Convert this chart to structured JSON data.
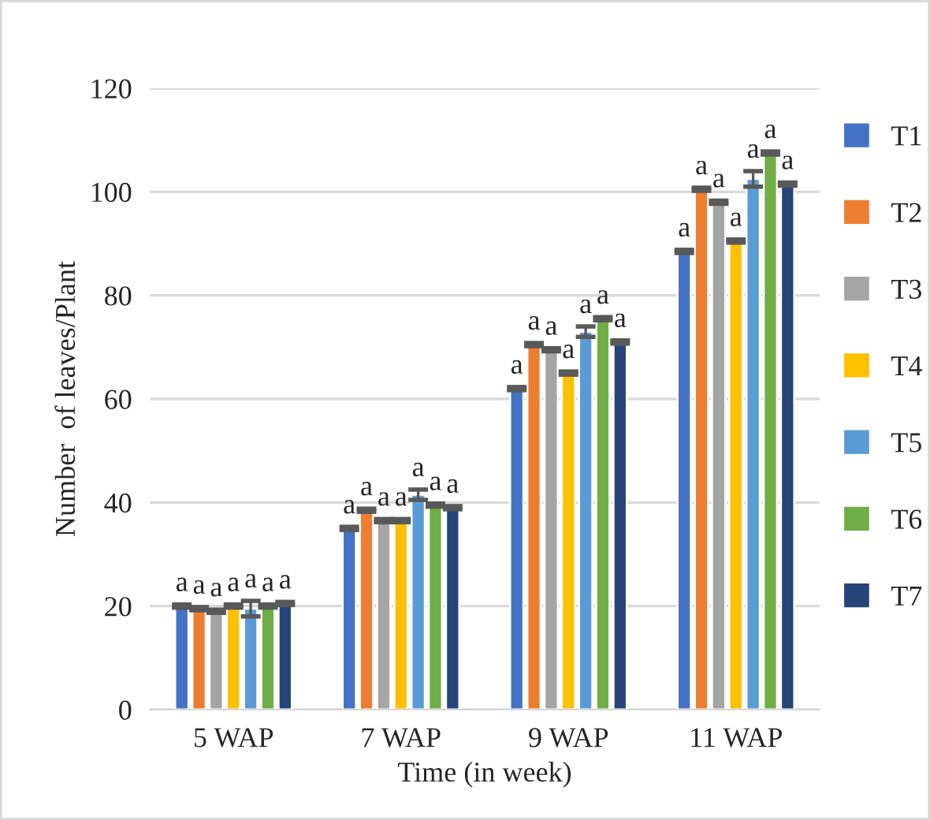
{
  "chart_data": {
    "type": "bar",
    "xlabel": "Time (in week)",
    "ylabel": "Number  of leaves/Plant",
    "categories": [
      "5 WAP",
      "7 WAP",
      "9 WAP",
      "11 WAP"
    ],
    "series": [
      {
        "name": "T1",
        "color": "#4472c4",
        "values": [
          20,
          35,
          62,
          88.5
        ],
        "errors": [
          0.3,
          0.3,
          0.3,
          0.3
        ],
        "value_labels": [
          "a",
          "a",
          "a",
          "a"
        ]
      },
      {
        "name": "T2",
        "color": "#ed7d31",
        "values": [
          19.5,
          38.5,
          70.5,
          100.5
        ],
        "errors": [
          0.3,
          0.3,
          0.3,
          0.3
        ],
        "value_labels": [
          "a",
          "a",
          "a",
          "a"
        ]
      },
      {
        "name": "T3",
        "color": "#a5a5a5",
        "values": [
          19,
          36.5,
          69.5,
          98
        ],
        "errors": [
          0.3,
          0.3,
          0.3,
          0.3
        ],
        "value_labels": [
          "a",
          "a",
          "a",
          "a"
        ]
      },
      {
        "name": "T4",
        "color": "#ffc000",
        "values": [
          20,
          36.5,
          65,
          90.5
        ],
        "errors": [
          0.3,
          0.3,
          0.3,
          0.3
        ],
        "value_labels": [
          "a",
          "a",
          "a",
          "a"
        ]
      },
      {
        "name": "T5",
        "color": "#5b9bd5",
        "values": [
          19.5,
          41.5,
          73,
          102.5
        ],
        "errors": [
          1.5,
          1,
          1,
          1.5
        ],
        "value_labels": [
          "a",
          "a",
          "a",
          "a"
        ]
      },
      {
        "name": "T6",
        "color": "#70ad47",
        "values": [
          20,
          39.5,
          75.5,
          107.5
        ],
        "errors": [
          0.3,
          0.3,
          0.3,
          0.3
        ],
        "value_labels": [
          "a",
          "a",
          "a",
          "a"
        ]
      },
      {
        "name": "T7",
        "color": "#264478",
        "values": [
          20.5,
          39,
          71,
          101.5
        ],
        "errors": [
          0.3,
          0.3,
          0.3,
          0.3
        ],
        "value_labels": [
          "a",
          "a",
          "a",
          "a"
        ]
      }
    ],
    "ylim": [
      0,
      120
    ],
    "yticks": [
      0,
      20,
      40,
      60,
      80,
      100,
      120
    ],
    "grid": "y",
    "legend": "right"
  }
}
